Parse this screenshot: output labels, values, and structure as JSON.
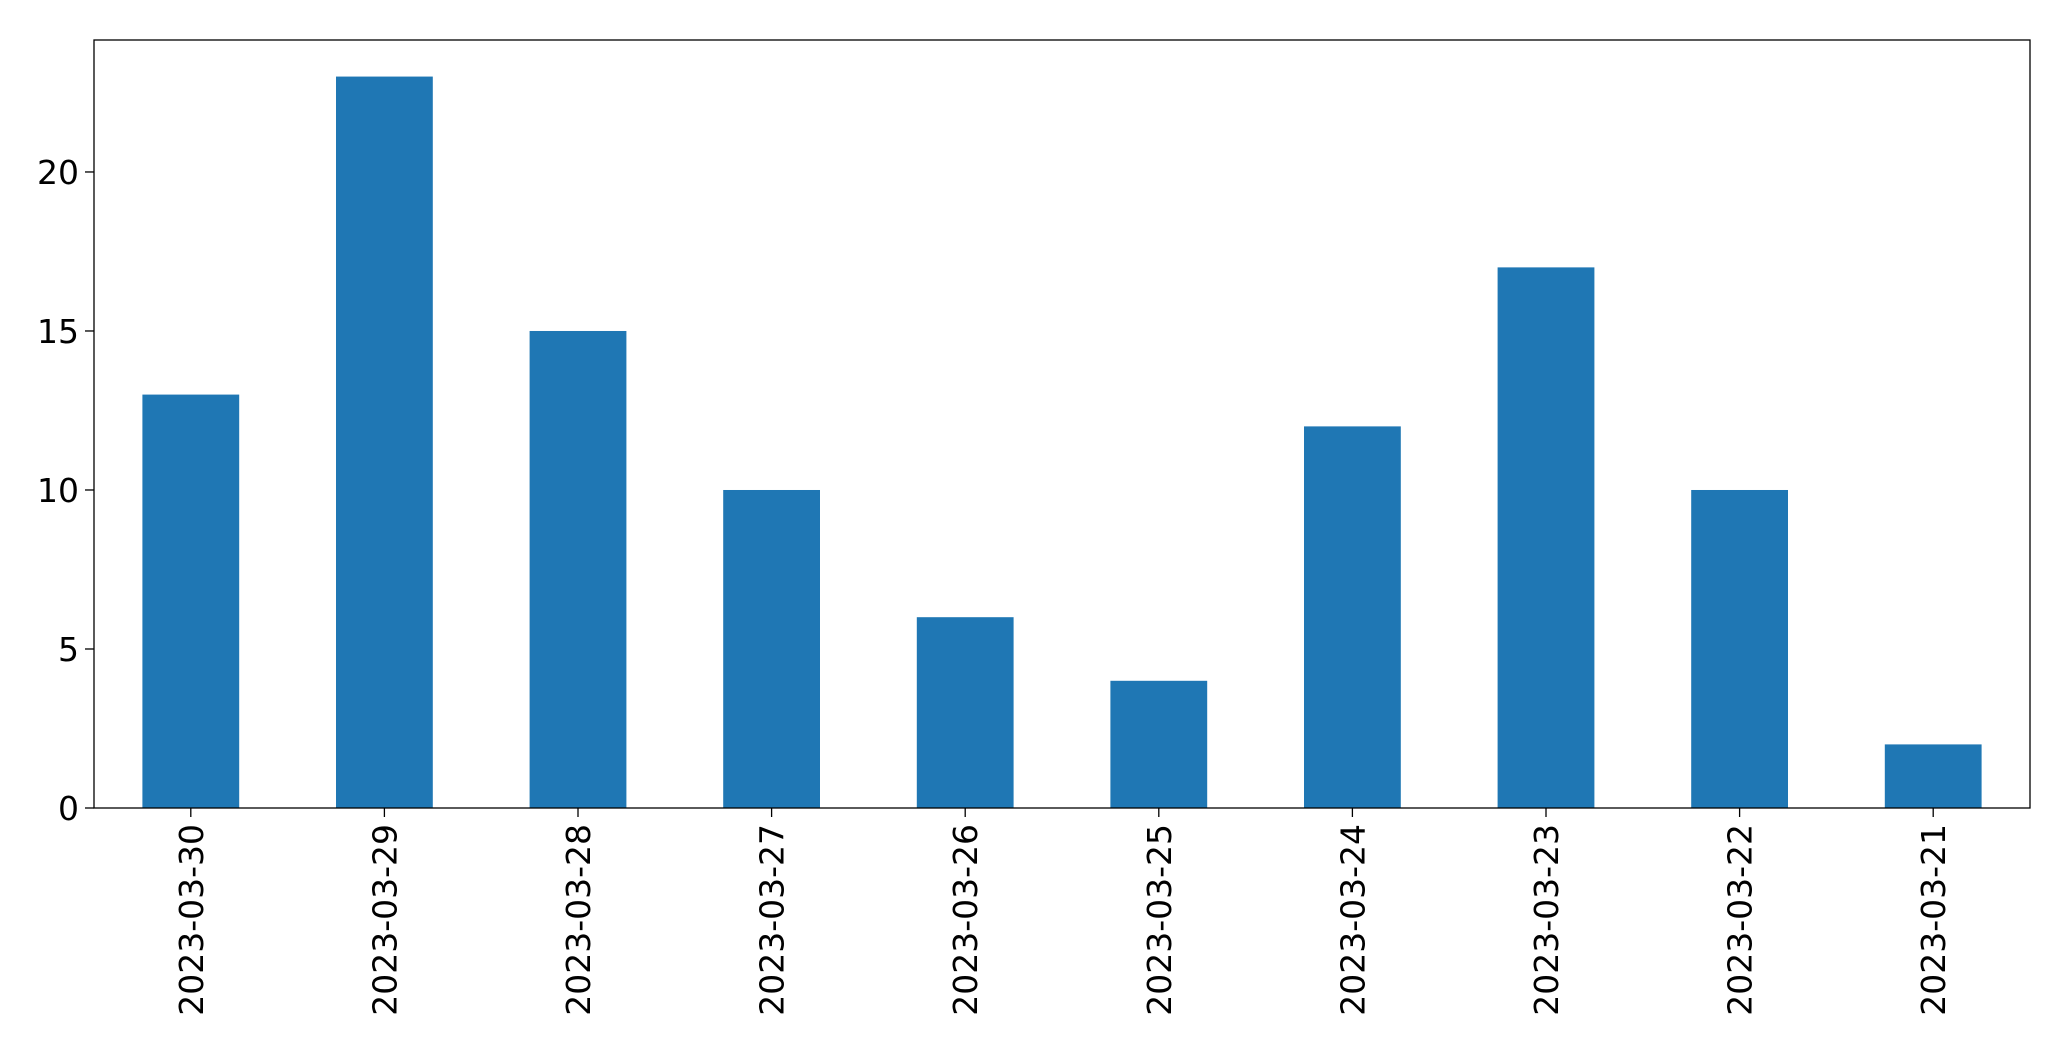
{
  "chart_data": {
    "type": "bar",
    "categories": [
      "2023-03-30",
      "2023-03-29",
      "2023-03-28",
      "2023-03-27",
      "2023-03-26",
      "2023-03-25",
      "2023-03-24",
      "2023-03-23",
      "2023-03-22",
      "2023-03-21"
    ],
    "values": [
      13,
      23,
      15,
      10,
      6,
      4,
      12,
      17,
      10,
      2
    ],
    "color": "#1f77b4",
    "ylim": [
      0,
      24.15
    ],
    "yticks": [
      0,
      5,
      10,
      15,
      20
    ],
    "grid": false
  }
}
